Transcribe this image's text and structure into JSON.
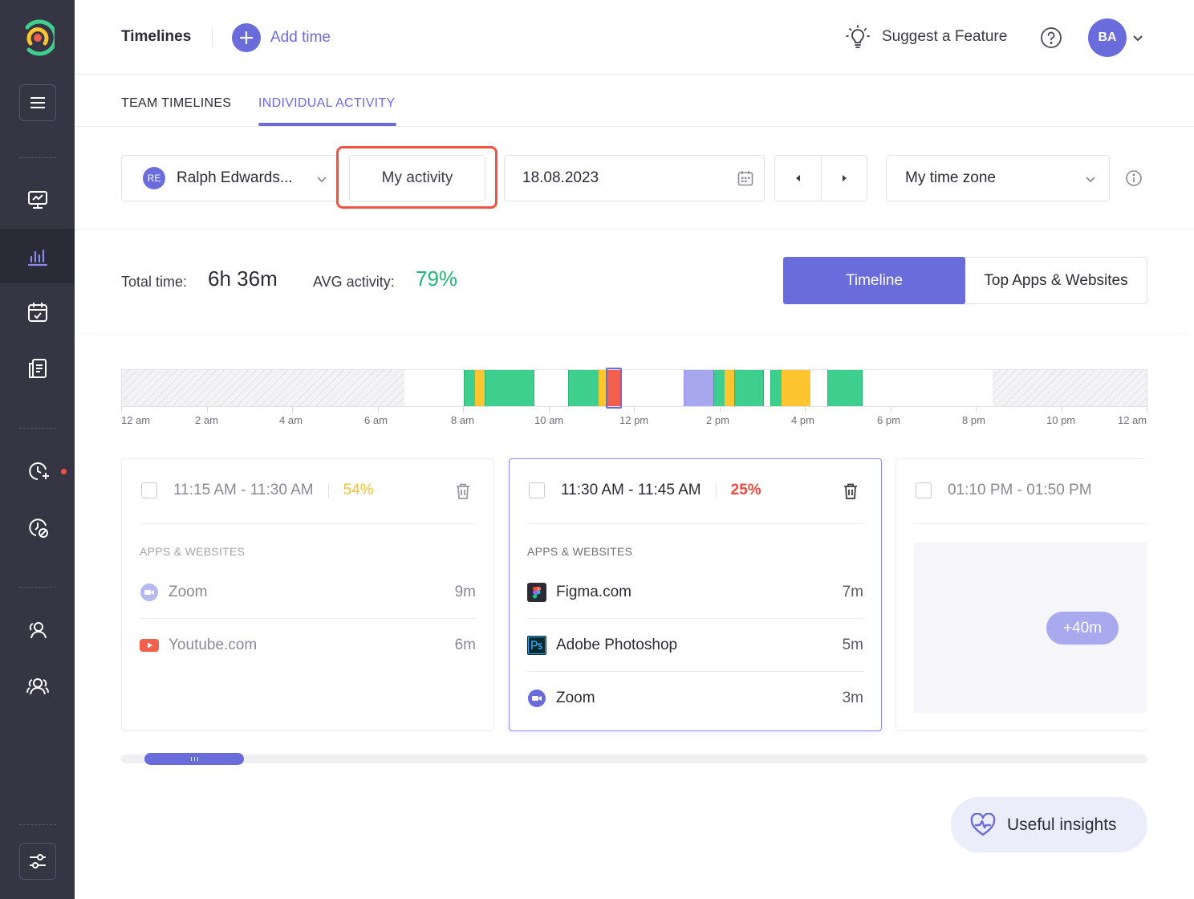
{
  "header": {
    "title": "Timelines",
    "add_time": "Add time",
    "suggest": "Suggest a Feature",
    "avatar_initials": "BA"
  },
  "tabs": [
    {
      "label": "TEAM TIMELINES",
      "active": false
    },
    {
      "label": "INDIVIDUAL ACTIVITY",
      "active": true
    }
  ],
  "filters": {
    "user_initials": "RE",
    "user_name": "Ralph Edwards...",
    "my_activity": "My activity",
    "date": "18.08.2023",
    "timezone": "My time zone"
  },
  "summary": {
    "total_label": "Total time:",
    "total_value": "6h 36m",
    "avg_label": "AVG activity:",
    "avg_value": "79%",
    "view_timeline": "Timeline",
    "view_top": "Top Apps & Websites"
  },
  "timeline": {
    "tick_labels": [
      "12 am",
      "2 am",
      "4 am",
      "6 am",
      "8 am",
      "10 am",
      "12 pm",
      "2 pm",
      "4 pm",
      "6 pm",
      "8 pm",
      "10 pm",
      "12 am"
    ],
    "colors": {
      "high": "#3ecf8e",
      "mid": "#fdc530",
      "low": "#f25f4c",
      "manual": "#a7a7ee",
      "edge": "#2ab573"
    }
  },
  "cards": [
    {
      "time": "11:15 AM - 11:30 AM",
      "percent": "54%",
      "percent_color": "#f5c033",
      "section": "APPS & WEBSITES",
      "apps": [
        {
          "name": "Zoom",
          "duration": "9m",
          "icon": "zoom-icon"
        },
        {
          "name": "Youtube.com",
          "duration": "6m",
          "icon": "youtube-icon"
        }
      ]
    },
    {
      "time": "11:30 AM - 11:45 AM",
      "percent": "25%",
      "percent_color": "#ea4b3c",
      "section": "APPS & WEBSITES",
      "apps": [
        {
          "name": "Figma.com",
          "duration": "7m",
          "icon": "figma-icon"
        },
        {
          "name": "Adobe Photoshop",
          "duration": "5m",
          "icon": "photoshop-icon"
        },
        {
          "name": "Zoom",
          "duration": "3m",
          "icon": "zoom-icon"
        }
      ]
    },
    {
      "time": "01:10 PM - 01:50 PM",
      "more_label": "+40m"
    }
  ],
  "insights": {
    "label": "Useful insights"
  },
  "colors": {
    "accent": "#6b6cdb",
    "sidebar": "#363544",
    "highlight": "#f0533f",
    "avg": "#22b573"
  }
}
